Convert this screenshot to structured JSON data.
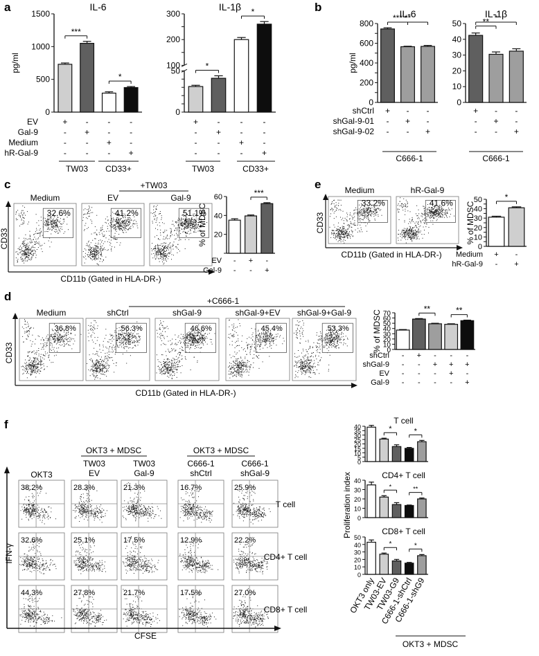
{
  "panel_letters": [
    "a",
    "b",
    "c",
    "d",
    "e",
    "f"
  ],
  "labels": {
    "ylabel_pgml": "pg/ml",
    "tw03": "TW03",
    "cd33plus": "CD33+",
    "c666": "C666-1",
    "tw03_bar": "+TW03",
    "c666_bar": "+C666-1",
    "cd33": "CD33",
    "cd11b_gated": "CD11b (Gated in HLA-DR-)",
    "pct_mdsc": "% of MDSC",
    "okt3": "OKT3",
    "okt3_mdsc": "OKT3 + MDSC",
    "ifng": "IFN-γ",
    "cfse": "CFSE",
    "prolif_index": "Proliferation index"
  },
  "flow": {
    "c": {
      "titles": [
        "Medium",
        "EV",
        "Gal-9"
      ],
      "percents": [
        "32.6%",
        "41.2%",
        "51.1%"
      ]
    },
    "e": {
      "titles": [
        "Medium",
        "hR-Gal-9"
      ],
      "percents": [
        "33.2%",
        "41.6%"
      ]
    },
    "d": {
      "titles": [
        "Medium",
        "shCtrl",
        "shGal-9",
        "shGal-9+EV",
        "shGal-9+Gal-9"
      ],
      "percents": [
        "36.8%",
        "56.3%",
        "46.6%",
        "45.4%",
        "53.3%"
      ]
    },
    "f": {
      "col_headers": [
        [
          "OKT3"
        ],
        [
          "TW03",
          "EV"
        ],
        [
          "TW03",
          "Gal-9"
        ],
        [
          "C666-1",
          "shCtrl"
        ],
        [
          "C666-1",
          "shGal-9"
        ]
      ],
      "row_labels": [
        "T cell",
        "CD4+ T cell",
        "CD8+ T cell"
      ],
      "percents": [
        [
          "38.2%",
          "28.3%",
          "21.3%",
          "16.7%",
          "25.9%"
        ],
        [
          "32.6%",
          "25.1%",
          "17.5%",
          "12.9%",
          "22.2%"
        ],
        [
          "44.3%",
          "27.8%",
          "21.7%",
          "17.5%",
          "27.0%"
        ]
      ]
    }
  },
  "colors": {
    "white": "#ffffff",
    "light_gray": "#cfcfcf",
    "mid_gray": "#9e9e9e",
    "dark_gray": "#5f5f5f",
    "black": "#0d0d0d"
  },
  "chart_data": [
    {
      "id": "a-il6",
      "type": "bar",
      "title": "IL-6",
      "ylabel": "pg/ml",
      "ylim": [
        0,
        1500
      ],
      "yticks": [
        0,
        500,
        1000,
        1500
      ],
      "values": [
        730,
        1050,
        290,
        375
      ],
      "errors": [
        20,
        30,
        20,
        15
      ],
      "colors": [
        "light_gray",
        "dark_gray",
        "white",
        "black"
      ],
      "significance": [
        {
          "between": [
            0,
            1
          ],
          "label": "***"
        },
        {
          "between": [
            2,
            3
          ],
          "label": "*"
        }
      ],
      "condition_labels": [
        "EV",
        "Gal-9",
        "Medium",
        "hR-Gal-9"
      ],
      "conditions": [
        [
          "+",
          "-",
          "-",
          "-"
        ],
        [
          "-",
          "+",
          "-",
          "-"
        ],
        [
          "-",
          "-",
          "+",
          "-"
        ],
        [
          "-",
          "-",
          "-",
          "+"
        ]
      ],
      "groups": [
        {
          "label": "TW03",
          "bars": [
            0,
            1
          ]
        },
        {
          "label": "CD33+",
          "bars": [
            2,
            3
          ]
        }
      ]
    },
    {
      "id": "a-il1b",
      "type": "bar",
      "title": "IL-1β",
      "ylabel": "",
      "axis_break": true,
      "ylim_lower": [
        0,
        50
      ],
      "yticks_lower": [
        0,
        10,
        20,
        30,
        40,
        50
      ],
      "ylim_upper": [
        100,
        300
      ],
      "yticks_upper": [
        100,
        150,
        200,
        250,
        300
      ],
      "values": [
        31,
        41,
        200,
        260
      ],
      "errors": [
        1.5,
        3,
        8,
        10
      ],
      "colors": [
        "light_gray",
        "dark_gray",
        "white",
        "black"
      ],
      "significance": [
        {
          "between": [
            0,
            1
          ],
          "label": "*"
        },
        {
          "between": [
            2,
            3
          ],
          "label": "*"
        }
      ],
      "conditions": [
        [
          "+",
          "-",
          "-",
          "-"
        ],
        [
          "-",
          "+",
          "-",
          "-"
        ],
        [
          "-",
          "-",
          "+",
          "-"
        ],
        [
          "-",
          "-",
          "-",
          "+"
        ]
      ],
      "groups": [
        {
          "label": "TW03",
          "bars": [
            0,
            1
          ]
        },
        {
          "label": "CD33+",
          "bars": [
            2,
            3
          ]
        }
      ]
    },
    {
      "id": "b-il6",
      "type": "bar",
      "title": "IL-6",
      "ylabel": "pg/ml",
      "ylim": [
        0,
        800
      ],
      "yticks": [
        0,
        100,
        200,
        300,
        400,
        500,
        600,
        700,
        800
      ],
      "values": [
        745,
        565,
        568
      ],
      "errors": [
        12,
        5,
        10
      ],
      "colors": [
        "dark_gray",
        "mid_gray",
        "mid_gray"
      ],
      "significance": [
        {
          "between": [
            0,
            1
          ],
          "label": "***"
        },
        {
          "between": [
            0,
            2
          ],
          "label": "**"
        }
      ],
      "condition_labels": [
        "shCtrl",
        "shGal-9-01",
        "shGal-9-02"
      ],
      "conditions": [
        [
          "+",
          "-",
          "-"
        ],
        [
          "-",
          "+",
          "-"
        ],
        [
          "-",
          "-",
          "+"
        ]
      ],
      "groups": [
        {
          "label": "C666-1",
          "bars": [
            0,
            1,
            2
          ]
        }
      ]
    },
    {
      "id": "b-il1b",
      "type": "bar",
      "title": "IL-1β",
      "ylabel": "",
      "ylim": [
        0,
        50
      ],
      "yticks": [
        0,
        10,
        20,
        30,
        40,
        50
      ],
      "values": [
        42.5,
        30.5,
        32.5
      ],
      "errors": [
        1.5,
        1.5,
        1.5
      ],
      "colors": [
        "dark_gray",
        "mid_gray",
        "mid_gray"
      ],
      "significance": [
        {
          "between": [
            0,
            1
          ],
          "label": "**"
        },
        {
          "between": [
            0,
            2
          ],
          "label": "*"
        }
      ],
      "conditions": [
        [
          "+",
          "-",
          "-"
        ],
        [
          "-",
          "+",
          "-"
        ],
        [
          "-",
          "-",
          "+"
        ]
      ],
      "groups": [
        {
          "label": "C666-1",
          "bars": [
            0,
            1,
            2
          ]
        }
      ]
    },
    {
      "id": "c-mdsc",
      "type": "bar",
      "title": "",
      "ylabel": "% of MDSC",
      "ylim": [
        0,
        60
      ],
      "yticks": [
        0,
        20,
        40,
        60
      ],
      "values": [
        35,
        39.5,
        52.5
      ],
      "errors": [
        1.5,
        1,
        1
      ],
      "colors": [
        "white",
        "light_gray",
        "dark_gray"
      ],
      "significance": [
        {
          "between": [
            1,
            2
          ],
          "label": "***"
        }
      ],
      "condition_labels": [
        "EV",
        "Gal-9"
      ],
      "conditions": [
        [
          "-",
          "+",
          "-"
        ],
        [
          "-",
          "-",
          "+"
        ]
      ]
    },
    {
      "id": "e-mdsc",
      "type": "bar",
      "title": "",
      "ylabel": "% of MDSC",
      "ylim": [
        0,
        50
      ],
      "yticks": [
        0,
        5,
        10,
        15,
        20,
        25,
        30,
        35,
        40,
        45,
        50
      ],
      "values": [
        31,
        41
      ],
      "errors": [
        1,
        1
      ],
      "colors": [
        "white",
        "light_gray"
      ],
      "significance": [
        {
          "between": [
            0,
            1
          ],
          "label": "*"
        }
      ],
      "condition_labels": [
        "Medium",
        "hR-Gal-9"
      ],
      "conditions": [
        [
          "+",
          "-"
        ],
        [
          "-",
          "+"
        ]
      ]
    },
    {
      "id": "d-mdsc",
      "type": "bar",
      "title": "",
      "ylabel": "% of MDSC",
      "ylim": [
        0,
        70
      ],
      "yticks": [
        0,
        10,
        20,
        30,
        40,
        50,
        60,
        70
      ],
      "values": [
        37,
        58,
        49,
        48,
        55
      ],
      "errors": [
        1,
        1,
        1,
        1,
        1
      ],
      "colors": [
        "white",
        "dark_gray",
        "mid_gray",
        "light_gray",
        "black"
      ],
      "significance": [
        {
          "between": [
            1,
            2
          ],
          "label": "**"
        },
        {
          "between": [
            3,
            4
          ],
          "label": "**"
        }
      ],
      "condition_labels": [
        "shCtrl",
        "shGal-9",
        "EV",
        "Gal-9"
      ],
      "conditions": [
        [
          "-",
          "+",
          "-",
          "-",
          "-"
        ],
        [
          "-",
          "-",
          "+",
          "+",
          "+"
        ],
        [
          "-",
          "-",
          "-",
          "+",
          "-"
        ],
        [
          "-",
          "-",
          "-",
          "-",
          "+"
        ]
      ]
    },
    {
      "id": "f-t",
      "type": "bar",
      "title": "T cell",
      "ylabel": "",
      "ylim": [
        0,
        40
      ],
      "yticks": [
        0,
        5,
        10,
        15,
        20,
        25,
        30,
        35,
        40
      ],
      "values": [
        39,
        25.5,
        17,
        15,
        22.5
      ],
      "errors": [
        2,
        1,
        2,
        1,
        1.5
      ],
      "colors": [
        "white",
        "light_gray",
        "dark_gray",
        "black",
        "mid_gray"
      ],
      "significance": [
        {
          "between": [
            1,
            2
          ],
          "label": "*"
        },
        {
          "between": [
            3,
            4
          ],
          "label": "*"
        }
      ]
    },
    {
      "id": "f-cd4",
      "type": "bar",
      "title": "CD4+ T cell",
      "ylabel": "",
      "ylim": [
        0,
        40
      ],
      "yticks": [
        0,
        10,
        20,
        30,
        40
      ],
      "values": [
        35,
        22,
        14,
        13,
        20
      ],
      "errors": [
        3,
        1.5,
        2,
        0.5,
        1
      ],
      "colors": [
        "white",
        "light_gray",
        "dark_gray",
        "black",
        "mid_gray"
      ],
      "significance": [
        {
          "between": [
            1,
            2
          ],
          "label": "*"
        },
        {
          "between": [
            3,
            4
          ],
          "label": "**"
        }
      ]
    },
    {
      "id": "f-cd8",
      "type": "bar",
      "title": "CD8+ T cell",
      "ylabel": "",
      "ylim": [
        0,
        50
      ],
      "yticks": [
        0,
        10,
        20,
        30,
        40,
        50
      ],
      "values": [
        43,
        27,
        18,
        15,
        25
      ],
      "errors": [
        3,
        1.5,
        2,
        1,
        1.5
      ],
      "colors": [
        "white",
        "light_gray",
        "dark_gray",
        "black",
        "mid_gray"
      ],
      "significance": [
        {
          "between": [
            1,
            2
          ],
          "label": "*"
        },
        {
          "between": [
            3,
            4
          ],
          "label": "*"
        }
      ],
      "categories": [
        "OKT3 only",
        "TW03-EV",
        "TW03-G9",
        "C666-1-shCtrl",
        "C666-1-shG9"
      ],
      "group_label": "OKT3 + MDSC"
    }
  ]
}
